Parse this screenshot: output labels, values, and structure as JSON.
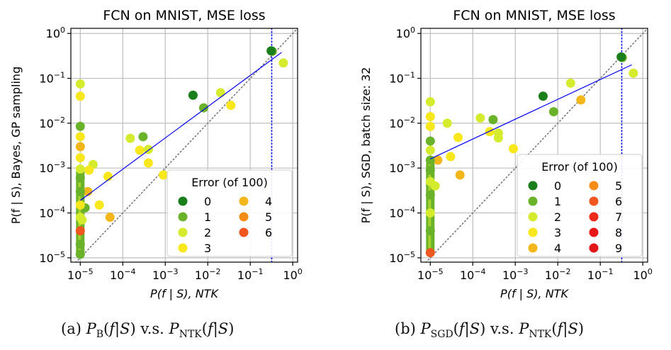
{
  "captions": {
    "a": {
      "label": "(a)",
      "lhs_sub": "B",
      "vs": "v.s.",
      "rhs_sub": "NTK"
    },
    "b": {
      "label": "(b)",
      "lhs_sub": "SGD",
      "vs": "v.s.",
      "rhs_sub": "NTK"
    }
  },
  "colors": {
    "0": "#1a7f1a",
    "1": "#6ab22a",
    "2": "#d4eb2e",
    "3": "#f8e71c",
    "4": "#f3b71c",
    "5": "#f58d14",
    "6": "#f0571e",
    "7": "#ec2a1c",
    "8": "#e81818",
    "9": "#e0161a",
    "fit": "#0000ee",
    "diag": "#777777",
    "grid": "#bfbfbf"
  },
  "chart_data": [
    {
      "type": "scatter",
      "title": "FCN on MNIST, MSE loss",
      "xlabel": "P(f | S), NTK",
      "ylabel": "P(f | S), Bayes, GP sampling",
      "x_scale": "log",
      "y_scale": "log",
      "xlim": [
        6e-06,
        1.3
      ],
      "ylim": [
        8e-06,
        1.3
      ],
      "x_ticks": [
        {
          "label": "10",
          "exp": "−5"
        },
        {
          "label": "10",
          "exp": "−4"
        },
        {
          "label": "10",
          "exp": "−3"
        },
        {
          "label": "10",
          "exp": "−2"
        },
        {
          "label": "10",
          "exp": "−1"
        },
        {
          "label": "10",
          "exp": "0"
        }
      ],
      "y_ticks": [
        {
          "label": "10",
          "exp": "−5"
        },
        {
          "label": "10",
          "exp": "−4"
        },
        {
          "label": "10",
          "exp": "−3"
        },
        {
          "label": "10",
          "exp": "−2"
        },
        {
          "label": "10",
          "exp": "−1"
        },
        {
          "label": "10",
          "exp": "0"
        }
      ],
      "grid": true,
      "legend": {
        "title": "Error (of 100)",
        "placement": "lower-right",
        "entries": [
          "0",
          "1",
          "2",
          "3",
          "4",
          "5",
          "6"
        ],
        "columns": 2
      },
      "vline_x": 0.32,
      "fit_line": [
        [
          1e-05,
          0.00019
        ],
        [
          0.55,
          0.38
        ]
      ],
      "diagonal": true,
      "points": [
        {
          "x": 0.33,
          "y": 0.4,
          "e": 1
        },
        {
          "x": 0.31,
          "y": 0.41,
          "e": 0
        },
        {
          "x": 0.6,
          "y": 0.22,
          "e": 2
        },
        {
          "x": 0.0045,
          "y": 0.042,
          "e": 0
        },
        {
          "x": 0.008,
          "y": 0.022,
          "e": 1
        },
        {
          "x": 0.02,
          "y": 0.048,
          "e": 2
        },
        {
          "x": 0.035,
          "y": 0.025,
          "e": 3
        },
        {
          "x": 0.00015,
          "y": 0.0046,
          "e": 2
        },
        {
          "x": 0.0003,
          "y": 0.005,
          "e": 1
        },
        {
          "x": 0.00025,
          "y": 0.0025,
          "e": 3
        },
        {
          "x": 0.0004,
          "y": 0.0026,
          "e": 2
        },
        {
          "x": 0.0004,
          "y": 0.0013,
          "e": 3
        },
        {
          "x": 0.0009,
          "y": 0.0007,
          "e": 3
        },
        {
          "x": 2e-05,
          "y": 0.0012,
          "e": 2
        },
        {
          "x": 1.6e-05,
          "y": 0.0009,
          "e": 3
        },
        {
          "x": 4.5e-05,
          "y": 0.00065,
          "e": 3
        },
        {
          "x": 2.8e-05,
          "y": 0.00015,
          "e": 3
        },
        {
          "x": 5e-05,
          "y": 8e-05,
          "e": 4
        },
        {
          "x": 1.5e-05,
          "y": 0.0003,
          "e": 4
        },
        {
          "x": 1.3e-05,
          "y": 0.00013,
          "e": 1
        },
        {
          "x": 1.1e-05,
          "y": 7e-05,
          "e": 2
        },
        {
          "x": 1e-05,
          "y": 0.075,
          "e": 2
        },
        {
          "x": 1e-05,
          "y": 0.04,
          "e": 3
        },
        {
          "x": 1e-05,
          "y": 0.0085,
          "e": 1
        },
        {
          "x": 1e-05,
          "y": 0.005,
          "e": 3
        },
        {
          "x": 1e-05,
          "y": 0.003,
          "e": 4
        },
        {
          "x": 1e-05,
          "y": 0.0017,
          "e": 3
        },
        {
          "x": 1e-05,
          "y": 0.00095,
          "e": 2
        },
        {
          "x": 1e-05,
          "y": 0.0006,
          "e": 1
        },
        {
          "x": 1e-05,
          "y": 0.0003,
          "e": 1
        },
        {
          "x": 1e-05,
          "y": 0.00015,
          "e": 3
        },
        {
          "x": 1e-05,
          "y": 8e-05,
          "e": 2
        },
        {
          "x": 1e-05,
          "y": 4e-05,
          "e": 6
        },
        {
          "x": 1e-05,
          "y": 2e-05,
          "e": 1
        },
        {
          "x": 1e-05,
          "y": 1.2e-05,
          "e": 1
        }
      ],
      "column_x": 1e-05,
      "column_range": [
        1.1e-05,
        0.001
      ]
    },
    {
      "type": "scatter",
      "title": "FCN on MNIST, MSE loss",
      "xlabel": "P(f | S), NTK",
      "ylabel": "P(f | S), SGD, batch size: 32",
      "x_scale": "log",
      "y_scale": "log",
      "xlim": [
        6e-06,
        1.3
      ],
      "ylim": [
        8e-06,
        1.3
      ],
      "x_ticks": [
        {
          "label": "10",
          "exp": "−5"
        },
        {
          "label": "10",
          "exp": "−4"
        },
        {
          "label": "10",
          "exp": "−3"
        },
        {
          "label": "10",
          "exp": "−2"
        },
        {
          "label": "10",
          "exp": "−1"
        },
        {
          "label": "10",
          "exp": "0"
        }
      ],
      "y_ticks": [
        {
          "label": "10",
          "exp": "−5"
        },
        {
          "label": "10",
          "exp": "−4"
        },
        {
          "label": "10",
          "exp": "−3"
        },
        {
          "label": "10",
          "exp": "−2"
        },
        {
          "label": "10",
          "exp": "−1"
        },
        {
          "label": "10",
          "exp": "0"
        }
      ],
      "grid": true,
      "legend": {
        "title": "Error (of 100)",
        "placement": "lower-right",
        "entries": [
          "0",
          "1",
          "2",
          "3",
          "4",
          "5",
          "6",
          "7",
          "8",
          "9"
        ],
        "columns": 2
      },
      "vline_x": 0.32,
      "fit_line": [
        [
          1e-05,
          0.0016
        ],
        [
          0.55,
          0.2
        ]
      ],
      "diagonal": true,
      "points": [
        {
          "x": 0.33,
          "y": 0.29,
          "e": 1
        },
        {
          "x": 0.31,
          "y": 0.3,
          "e": 0
        },
        {
          "x": 0.6,
          "y": 0.13,
          "e": 2
        },
        {
          "x": 0.0045,
          "y": 0.04,
          "e": 0
        },
        {
          "x": 0.008,
          "y": 0.018,
          "e": 1
        },
        {
          "x": 0.02,
          "y": 0.078,
          "e": 2
        },
        {
          "x": 0.035,
          "y": 0.033,
          "e": 4
        },
        {
          "x": 0.00015,
          "y": 0.013,
          "e": 2
        },
        {
          "x": 0.0003,
          "y": 0.012,
          "e": 1
        },
        {
          "x": 0.00025,
          "y": 0.0065,
          "e": 3
        },
        {
          "x": 0.0004,
          "y": 0.006,
          "e": 2
        },
        {
          "x": 0.0004,
          "y": 0.0047,
          "e": 2
        },
        {
          "x": 0.0009,
          "y": 0.0027,
          "e": 3
        },
        {
          "x": 2.5e-05,
          "y": 0.01,
          "e": 2
        },
        {
          "x": 4.5e-05,
          "y": 0.0048,
          "e": 3
        },
        {
          "x": 3e-05,
          "y": 0.0018,
          "e": 3
        },
        {
          "x": 5e-05,
          "y": 0.0007,
          "e": 4
        },
        {
          "x": 1.5e-05,
          "y": 0.0015,
          "e": 4
        },
        {
          "x": 1.3e-05,
          "y": 0.0004,
          "e": 2
        },
        {
          "x": 1e-05,
          "y": 0.03,
          "e": 2
        },
        {
          "x": 1e-05,
          "y": 0.014,
          "e": 3
        },
        {
          "x": 1e-05,
          "y": 0.0085,
          "e": 3
        },
        {
          "x": 1e-05,
          "y": 0.004,
          "e": 1
        },
        {
          "x": 1e-05,
          "y": 0.0025,
          "e": 2
        },
        {
          "x": 1e-05,
          "y": 0.0015,
          "e": 1
        },
        {
          "x": 1e-05,
          "y": 0.0009,
          "e": 1
        },
        {
          "x": 1e-05,
          "y": 0.0005,
          "e": 2
        },
        {
          "x": 1e-05,
          "y": 0.00025,
          "e": 1
        },
        {
          "x": 1e-05,
          "y": 0.0001,
          "e": 2
        },
        {
          "x": 1e-05,
          "y": 4e-05,
          "e": 1
        },
        {
          "x": 1e-05,
          "y": 1.3e-05,
          "e": 6
        }
      ],
      "column_x": 1e-05,
      "column_range": [
        1.1e-05,
        0.0015
      ]
    }
  ]
}
